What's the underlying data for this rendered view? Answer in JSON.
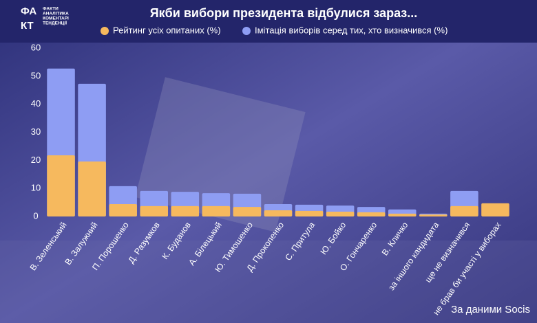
{
  "logo": {
    "mark": [
      "ФА",
      "КТ"
    ],
    "lines": [
      "ФАКТИ",
      "АНАЛІТИКА",
      "КОМЕНТАРІ",
      "ТЕНДЕНЦІЇ"
    ]
  },
  "chart_data": {
    "type": "bar",
    "bar_mode": "overlap",
    "title": "Якби вибори президента відбулися зараз...",
    "source": "За даними Socis",
    "categories": [
      "В. Зеленський",
      "В. Залужний",
      "П. Порошенко",
      "Д. Разумков",
      "К. Буданов",
      "А. Білецький",
      "Ю. Тимошенко",
      "Д. Прокопенко",
      "С. Притула",
      "Ю. Бойко",
      "О. Гончаренко",
      "В. Кличко",
      "за іншого кандидата",
      "ще не визначився",
      "не брав би участі у виборах"
    ],
    "series": [
      {
        "name": "Рейтинг усіх опитаних (%)",
        "color": "#f6b95e",
        "values": [
          21.8,
          19.6,
          4.4,
          3.7,
          3.7,
          3.7,
          3.4,
          2.2,
          2.0,
          1.7,
          1.5,
          1.0,
          0.7,
          3.7,
          4.7
        ]
      },
      {
        "name": "Імітація виборів серед тих, хто визначився (%)",
        "color": "#8e9df3",
        "values": [
          52.7,
          47.3,
          10.8,
          9.1,
          8.8,
          8.3,
          8.1,
          4.4,
          4.2,
          3.9,
          3.4,
          2.5,
          1.0,
          9.1,
          null
        ]
      }
    ],
    "ylim": [
      0,
      60
    ],
    "yticks": [
      0,
      10,
      20,
      30,
      40,
      50,
      60
    ],
    "grid": false
  }
}
